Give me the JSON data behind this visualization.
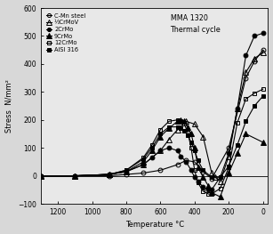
{
  "title_annotation": "MMA 1320\nThermal cycle",
  "xlabel": "Temperature °C",
  "ylabel": "Stress  N/mm²",
  "xlim": [
    1300,
    -30
  ],
  "ylim": [
    -100,
    600
  ],
  "yticks": [
    -100,
    0,
    100,
    200,
    300,
    400,
    500,
    600
  ],
  "xticks": [
    1200,
    1000,
    800,
    600,
    400,
    200,
    0
  ],
  "series": [
    {
      "label": "C-Mn steel",
      "marker": "o",
      "fillstyle": "none",
      "color": "black",
      "x": [
        1300,
        1100,
        900,
        800,
        700,
        600,
        500,
        450,
        400,
        350,
        300,
        200,
        100,
        50,
        0
      ],
      "y": [
        0,
        0,
        0,
        5,
        10,
        20,
        40,
        55,
        50,
        15,
        -10,
        100,
        350,
        410,
        450
      ]
    },
    {
      "label": "½CrMoV",
      "marker": "^",
      "fillstyle": "none",
      "color": "black",
      "x": [
        1300,
        1100,
        900,
        800,
        700,
        600,
        550,
        500,
        450,
        400,
        350,
        300,
        280,
        250,
        200,
        150,
        100,
        50,
        0
      ],
      "y": [
        0,
        0,
        5,
        15,
        40,
        90,
        130,
        165,
        195,
        185,
        140,
        10,
        -5,
        -20,
        70,
        240,
        370,
        420,
        440
      ]
    },
    {
      "label": "2CrMo",
      "marker": "o",
      "fillstyle": "full",
      "color": "black",
      "x": [
        1300,
        1100,
        900,
        800,
        700,
        650,
        600,
        550,
        500,
        480,
        450,
        420,
        400,
        380,
        350,
        320,
        300,
        250,
        200,
        150,
        100,
        50,
        0
      ],
      "y": [
        0,
        0,
        5,
        15,
        40,
        65,
        90,
        100,
        90,
        70,
        50,
        20,
        -5,
        -20,
        -40,
        -50,
        -50,
        -5,
        80,
        240,
        430,
        500,
        510
      ]
    },
    {
      "label": "9CrMo",
      "marker": "^",
      "fillstyle": "full",
      "color": "black",
      "x": [
        1300,
        1100,
        900,
        800,
        700,
        650,
        600,
        550,
        500,
        480,
        460,
        440,
        420,
        400,
        380,
        350,
        320,
        300,
        250,
        200,
        150,
        100,
        0
      ],
      "y": [
        0,
        0,
        5,
        15,
        50,
        90,
        140,
        170,
        195,
        200,
        195,
        175,
        150,
        100,
        30,
        -5,
        -35,
        -60,
        -75,
        10,
        80,
        150,
        120
      ]
    },
    {
      "label": "12CrMo",
      "marker": "s",
      "fillstyle": "none",
      "color": "black",
      "x": [
        1300,
        1100,
        900,
        800,
        700,
        650,
        600,
        550,
        500,
        480,
        460,
        440,
        420,
        400,
        380,
        350,
        320,
        300,
        250,
        200,
        150,
        100,
        50,
        0
      ],
      "y": [
        0,
        0,
        5,
        20,
        65,
        110,
        165,
        195,
        200,
        195,
        185,
        155,
        100,
        20,
        -25,
        -55,
        -65,
        -65,
        -45,
        30,
        190,
        275,
        295,
        310
      ]
    },
    {
      "label": "AISI 316",
      "marker": "s",
      "fillstyle": "full",
      "color": "black",
      "x": [
        1300,
        1100,
        900,
        800,
        700,
        650,
        600,
        550,
        500,
        480,
        460,
        440,
        420,
        400,
        380,
        350,
        300,
        250,
        200,
        150,
        100,
        50,
        0
      ],
      "y": [
        0,
        0,
        5,
        20,
        60,
        100,
        150,
        175,
        175,
        170,
        160,
        145,
        120,
        90,
        55,
        20,
        -5,
        -5,
        35,
        110,
        195,
        250,
        285
      ]
    }
  ],
  "bg_color": "#d8d8d8",
  "plot_bg_color": "#e8e8e8"
}
